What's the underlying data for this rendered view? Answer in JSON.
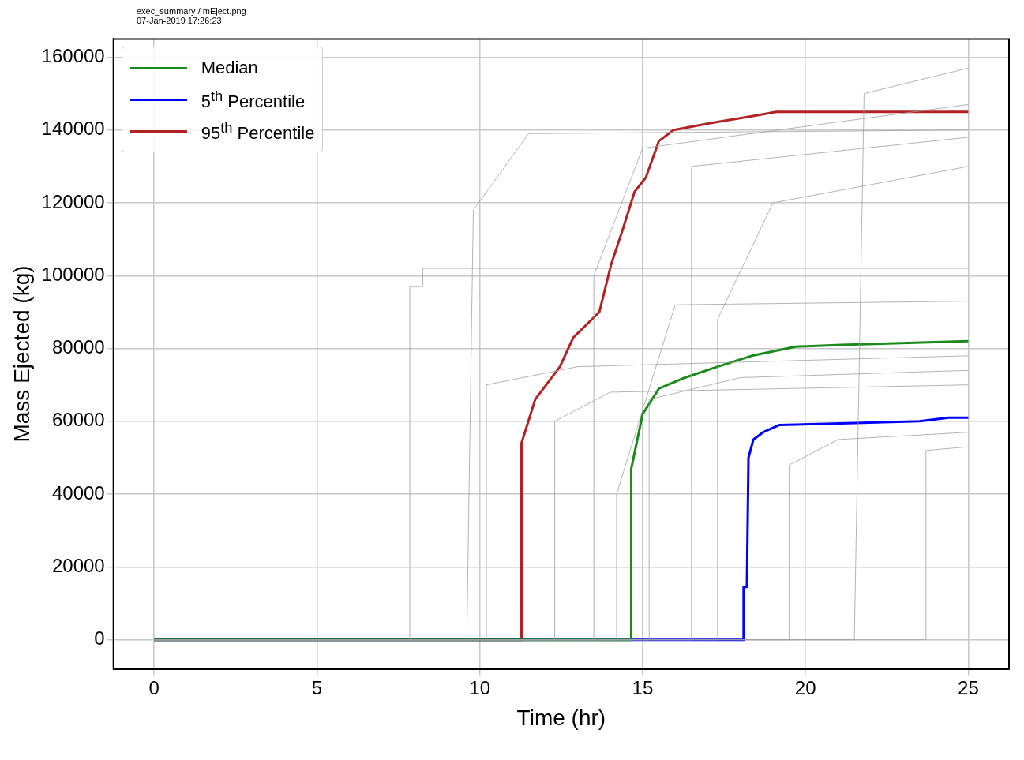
{
  "chart_data": {
    "type": "line",
    "annotations": [
      "exec_summary / mEject.png",
      "07-Jan-2019 17:26:23"
    ],
    "xlabel": "Time (hr)",
    "ylabel": "Mass Ejected (kg)",
    "xlim": [
      -1.25,
      26.25
    ],
    "ylim": [
      -8000,
      165000
    ],
    "xticks": [
      0,
      5,
      10,
      15,
      20,
      25
    ],
    "yticks": [
      0,
      20000,
      40000,
      60000,
      80000,
      100000,
      120000,
      140000,
      160000
    ],
    "grid": true,
    "legend": "top left",
    "series": [
      {
        "color": "#a0a0a0",
        "x": [
          0,
          7.85,
          7.85,
          8.25,
          8.25,
          25
        ],
        "values": [
          0,
          0,
          97000,
          97000,
          102000,
          102000
        ]
      },
      {
        "color": "#a0a0a0",
        "x": [
          0,
          9.6,
          9.8,
          11.5,
          25
        ],
        "values": [
          0,
          0,
          118000,
          139000,
          140000
        ]
      },
      {
        "color": "#a0a0a0",
        "x": [
          0,
          10.2,
          10.2,
          13,
          25
        ],
        "values": [
          0,
          0,
          70000,
          75000,
          78000
        ]
      },
      {
        "color": "#a0a0a0",
        "x": [
          0,
          12.3,
          12.3,
          14,
          25
        ],
        "values": [
          0,
          0,
          60000,
          68000,
          70000
        ]
      },
      {
        "color": "#a0a0a0",
        "x": [
          0,
          13.5,
          13.5,
          15,
          25
        ],
        "values": [
          0,
          0,
          100000,
          135000,
          147000
        ]
      },
      {
        "color": "#a0a0a0",
        "x": [
          0,
          14.2,
          14.2,
          16,
          25
        ],
        "values": [
          0,
          0,
          40000,
          92000,
          93000
        ]
      },
      {
        "color": "#a0a0a0",
        "x": [
          0,
          15.2,
          15.2,
          18,
          25
        ],
        "values": [
          0,
          0,
          66000,
          72000,
          74000
        ]
      },
      {
        "color": "#a0a0a0",
        "x": [
          0,
          16.5,
          16.5,
          25
        ],
        "values": [
          0,
          0,
          130000,
          138000
        ]
      },
      {
        "color": "#a0a0a0",
        "x": [
          0,
          17.3,
          17.3,
          19,
          25
        ],
        "values": [
          0,
          0,
          88000,
          120000,
          130000
        ]
      },
      {
        "color": "#a0a0a0",
        "x": [
          0,
          19.5,
          19.5,
          21,
          25
        ],
        "values": [
          0,
          0,
          48000,
          55000,
          57000
        ]
      },
      {
        "color": "#a0a0a0",
        "x": [
          0,
          21.5,
          21.8,
          25
        ],
        "values": [
          0,
          0,
          150000,
          157000
        ]
      },
      {
        "color": "#a0a0a0",
        "x": [
          0,
          23.7,
          23.7,
          25
        ],
        "values": [
          0,
          0,
          52000,
          53000
        ]
      },
      {
        "name": "Median",
        "color": "#1a8a1a",
        "x": [
          0,
          14.65,
          14.65,
          15.0,
          15.5,
          16.3,
          17.3,
          18.35,
          19.7,
          21.1,
          25
        ],
        "values": [
          0,
          0,
          47000,
          62000,
          69000,
          72000,
          75000,
          78000,
          80500,
          81000,
          82000
        ]
      },
      {
        "name": "5$^{th}$ Percentile",
        "color": "#0000ff",
        "x": [
          0,
          18.1,
          18.1,
          18.2,
          18.25,
          18.4,
          18.7,
          19.2,
          21.3,
          23.5,
          24.4,
          25
        ],
        "values": [
          0,
          0,
          14500,
          14500,
          50000,
          55000,
          57000,
          59000,
          59500,
          60000,
          61000,
          61000
        ]
      },
      {
        "name": "95$^{th}$ Percentile",
        "color": "#b22222",
        "x": [
          0,
          11.28,
          11.28,
          11.7,
          12.46,
          12.87,
          13.67,
          14.03,
          14.4,
          14.75,
          15.1,
          15.5,
          15.95,
          17.15,
          18.5,
          19.1,
          25
        ],
        "values": [
          0,
          0,
          54000,
          66000,
          75000,
          83000,
          90000,
          103000,
          113000,
          123000,
          127000,
          137000,
          140000,
          142000,
          144000,
          145000,
          145000
        ]
      }
    ]
  }
}
